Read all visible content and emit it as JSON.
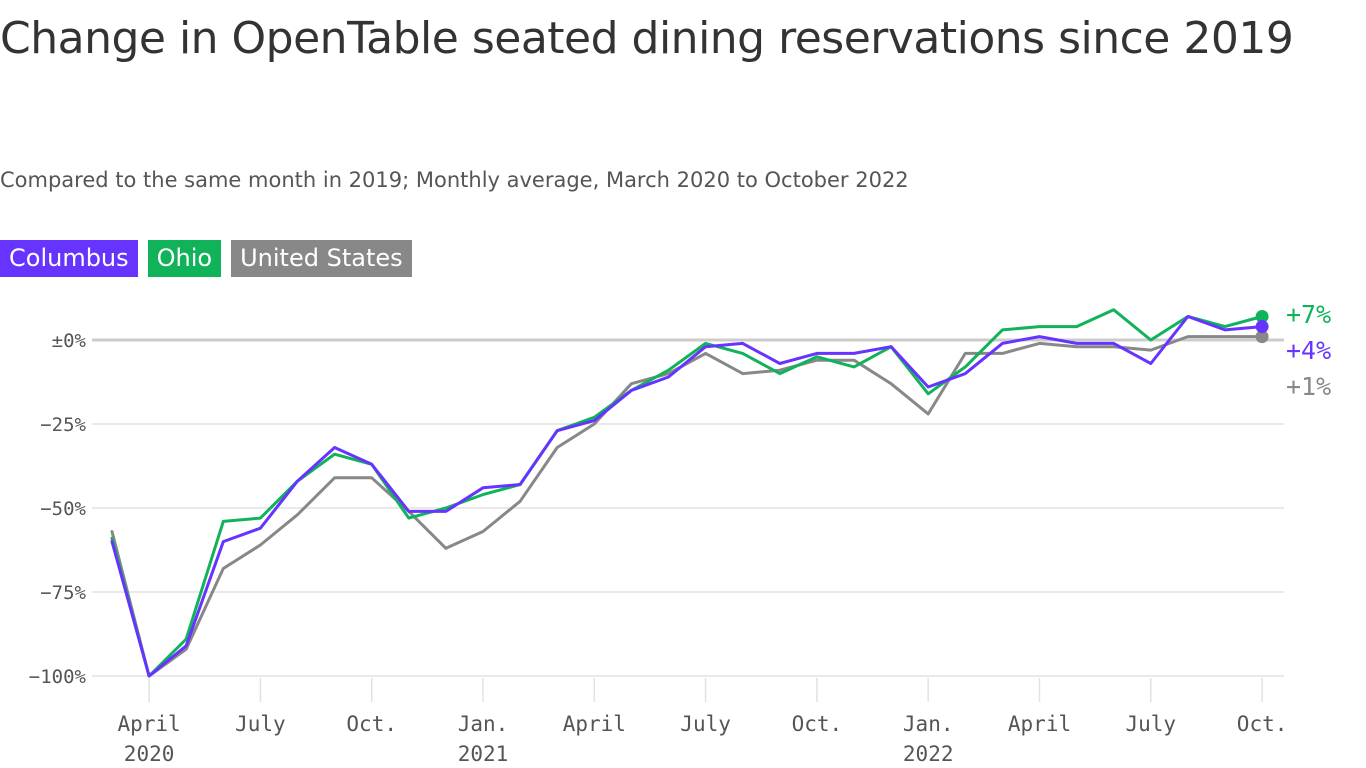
{
  "header": {
    "title": "Change in OpenTable seated dining reservations since 2019",
    "subtitle": "Compared to the same month in 2019; Monthly average, March 2020 to October 2022"
  },
  "colors": {
    "columbus": "#6633ff",
    "ohio": "#11b35a",
    "us": "#888888",
    "grid": "#e2e2e2",
    "zero": "#cccccc"
  },
  "chart_data": {
    "type": "line",
    "ylim": [
      -100,
      7
    ],
    "y_ticks": [
      {
        "value": 0,
        "label": "±0%"
      },
      {
        "value": -25,
        "label": "−25%"
      },
      {
        "value": -50,
        "label": "−50%"
      },
      {
        "value": -75,
        "label": "−75%"
      },
      {
        "value": -100,
        "label": "−100%"
      }
    ],
    "x": [
      "2020-03",
      "2020-04",
      "2020-05",
      "2020-06",
      "2020-07",
      "2020-08",
      "2020-09",
      "2020-10",
      "2020-11",
      "2020-12",
      "2021-01",
      "2021-02",
      "2021-03",
      "2021-04",
      "2021-05",
      "2021-06",
      "2021-07",
      "2021-08",
      "2021-09",
      "2021-10",
      "2021-11",
      "2021-12",
      "2022-01",
      "2022-02",
      "2022-03",
      "2022-04",
      "2022-05",
      "2022-06",
      "2022-07",
      "2022-08",
      "2022-09",
      "2022-10"
    ],
    "x_ticks": [
      {
        "x": "2020-04",
        "label": "April",
        "year": "2020"
      },
      {
        "x": "2020-07",
        "label": "July"
      },
      {
        "x": "2020-10",
        "label": "Oct."
      },
      {
        "x": "2021-01",
        "label": "Jan.",
        "year": "2021"
      },
      {
        "x": "2021-04",
        "label": "April"
      },
      {
        "x": "2021-07",
        "label": "July"
      },
      {
        "x": "2021-10",
        "label": "Oct."
      },
      {
        "x": "2022-01",
        "label": "Jan.",
        "year": "2022"
      },
      {
        "x": "2022-04",
        "label": "April"
      },
      {
        "x": "2022-07",
        "label": "July"
      },
      {
        "x": "2022-10",
        "label": "Oct."
      }
    ],
    "legend_placement": "top-left",
    "series": [
      {
        "name": "Columbus",
        "key": "columbus",
        "end_label": "+4%",
        "values": [
          -60,
          -100,
          -91,
          -60,
          -56,
          -42,
          -32,
          -37,
          -51,
          -51,
          -44,
          -43,
          -27,
          -24,
          -15,
          -11,
          -2,
          -1,
          -7,
          -4,
          -4,
          -2,
          -14,
          -10,
          -1,
          1,
          -1,
          -1,
          -7,
          7,
          3,
          4
        ]
      },
      {
        "name": "Ohio",
        "key": "ohio",
        "end_label": "+7%",
        "values": [
          -59,
          -100,
          -89,
          -54,
          -53,
          -42,
          -34,
          -37,
          -53,
          -50,
          -46,
          -43,
          -27,
          -23,
          -15,
          -9,
          -1,
          -4,
          -10,
          -5,
          -8,
          -2,
          -16,
          -8,
          3,
          4,
          4,
          9,
          0,
          7,
          4,
          7
        ]
      },
      {
        "name": "United States",
        "key": "us",
        "end_label": "+1%",
        "values": [
          -57,
          -100,
          -92,
          -68,
          -61,
          -52,
          -41,
          -41,
          -51,
          -62,
          -57,
          -48,
          -32,
          -25,
          -13,
          -10,
          -4,
          -10,
          -9,
          -6,
          -6,
          -13,
          -22,
          -4,
          -4,
          -1,
          -2,
          -2,
          -3,
          1,
          1,
          1
        ]
      }
    ]
  }
}
